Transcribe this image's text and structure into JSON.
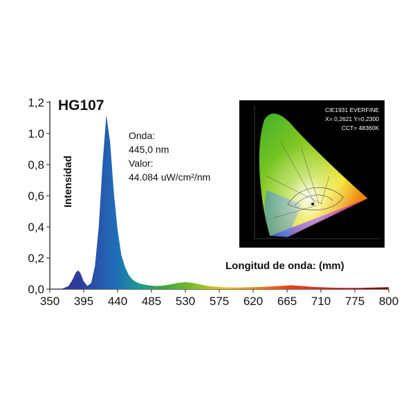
{
  "title": "HG107",
  "ylabel": "Intensidad",
  "xlabel": "Longitud de onda: (mm)",
  "info": {
    "onda_label": "Onda:",
    "onda_value": "445,0 nm",
    "valor_label": "Valor:",
    "valor_value": "44.084 uW/cm²/nm"
  },
  "cie": {
    "line1": "CIE1931 EVERFINE",
    "line2": "X= 0,2621 Y=0,2300",
    "line3": "CCT= 48360K"
  },
  "chart_data": {
    "type": "area",
    "title": "HG107",
    "xlabel": "Longitud de onda: (mm)",
    "ylabel": "Intensidad",
    "xlim": [
      350,
      800
    ],
    "ylim": [
      0,
      1.2
    ],
    "x_ticks": [
      "350",
      "395",
      "440",
      "485",
      "530",
      "575",
      "620",
      "665",
      "710",
      "775",
      "800"
    ],
    "y_ticks": [
      "0,0",
      "0,2",
      "0,4",
      "0,6",
      "0,8",
      "1.0",
      "1,2"
    ],
    "x": [
      350,
      365,
      375,
      380,
      385,
      388,
      391,
      395,
      400,
      405,
      410,
      415,
      420,
      425,
      430,
      435,
      440,
      445,
      450,
      455,
      460,
      465,
      470,
      480,
      490,
      500,
      510,
      520,
      530,
      540,
      550,
      560,
      580,
      600,
      620,
      640,
      660,
      670,
      680,
      690,
      700,
      720,
      740,
      760,
      780,
      800
    ],
    "y": [
      0.0,
      0.0,
      0.02,
      0.06,
      0.11,
      0.12,
      0.1,
      0.05,
      0.02,
      0.04,
      0.15,
      0.4,
      0.8,
      1.12,
      0.95,
      0.62,
      0.38,
      0.22,
      0.14,
      0.09,
      0.06,
      0.045,
      0.035,
      0.025,
      0.02,
      0.022,
      0.03,
      0.04,
      0.045,
      0.04,
      0.03,
      0.02,
      0.012,
      0.01,
      0.012,
      0.016,
      0.022,
      0.025,
      0.022,
      0.018,
      0.014,
      0.01,
      0.008,
      0.008,
      0.01,
      0.012
    ]
  }
}
